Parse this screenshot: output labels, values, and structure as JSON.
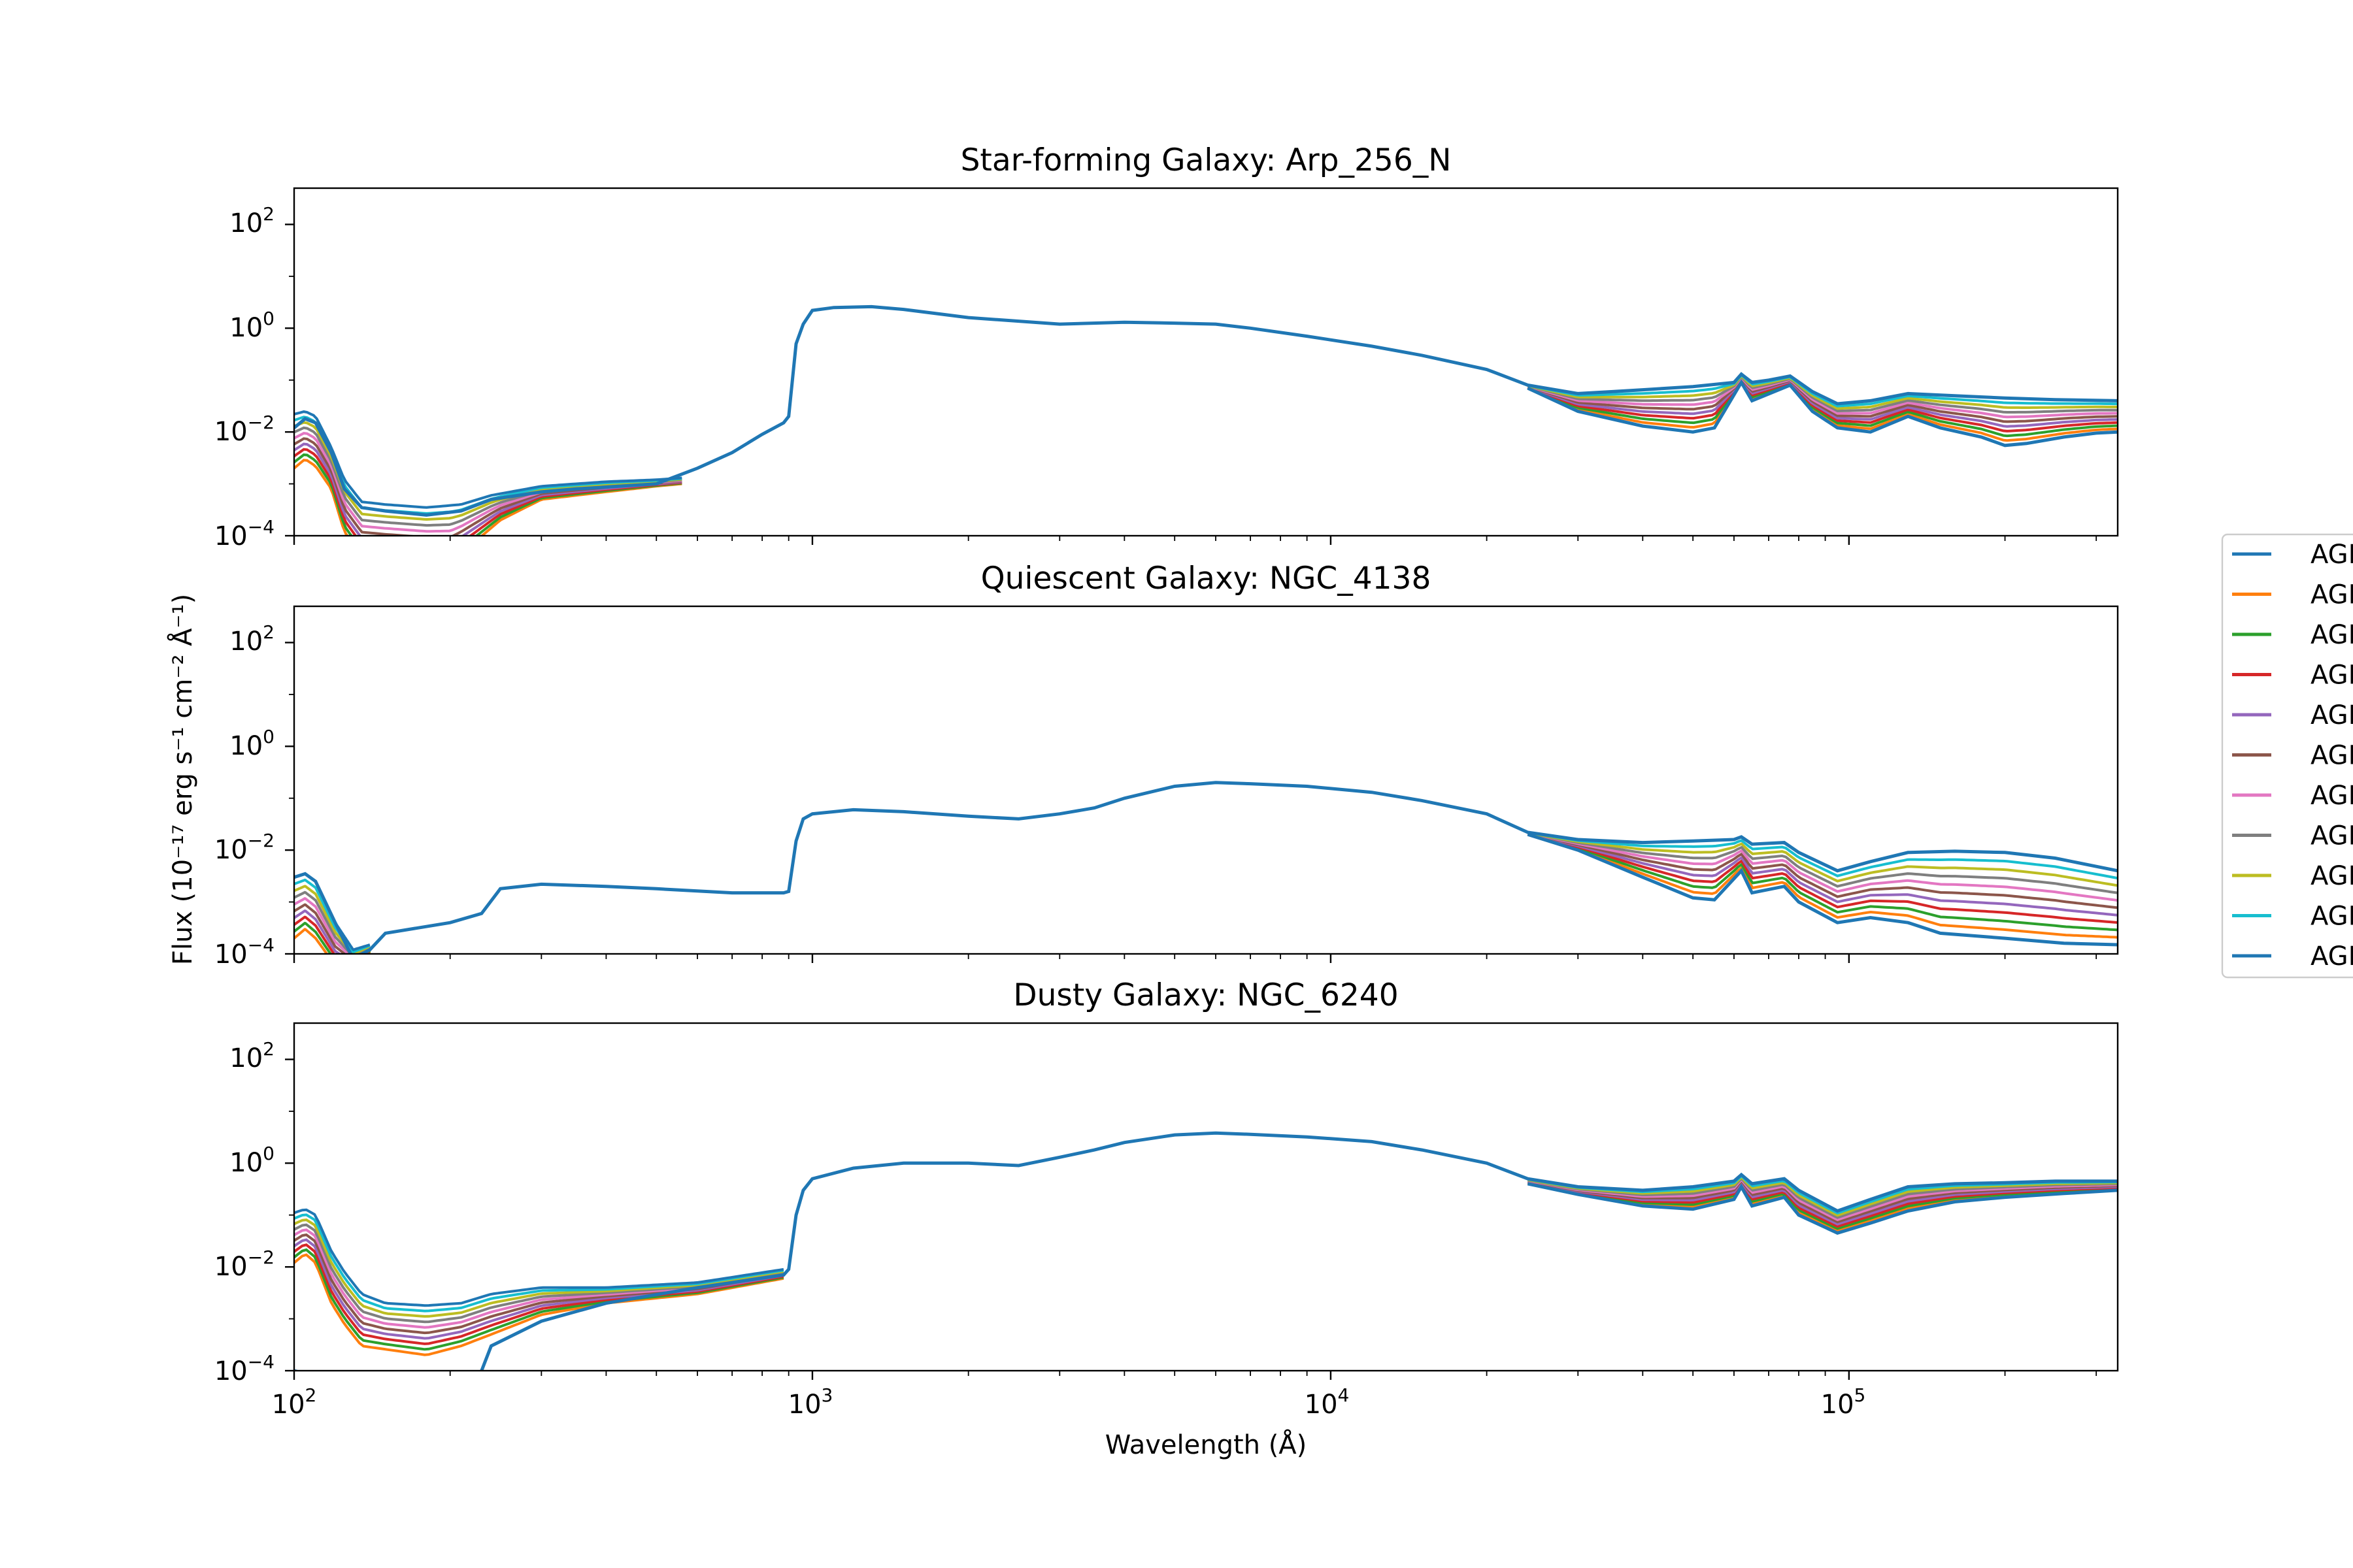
{
  "chart_data": [
    {
      "type": "line",
      "title": "Star-forming Galaxy: Arp_256_N",
      "xscale": "log",
      "yscale": "log",
      "xlim": [
        100,
        330000
      ],
      "ylim": [
        0.0001,
        500
      ],
      "xticks": [
        100,
        1000,
        10000,
        100000
      ],
      "yticks": [
        0.0001,
        0.01,
        1,
        100
      ],
      "base": [
        [
          100,
          0.012
        ],
        [
          105,
          0.018
        ],
        [
          110,
          0.015
        ],
        [
          118,
          0.004
        ],
        [
          125,
          0.0008
        ],
        [
          135,
          0.00035
        ],
        [
          150,
          0.0003
        ],
        [
          180,
          0.00025
        ],
        [
          210,
          0.0003
        ],
        [
          240,
          0.0005
        ],
        [
          300,
          0.0007
        ],
        [
          350,
          0.0008
        ],
        [
          500,
          0.001
        ],
        [
          600,
          0.002
        ],
        [
          700,
          0.004
        ],
        [
          800,
          0.009
        ],
        [
          880,
          0.015
        ],
        [
          900,
          0.02
        ],
        [
          930,
          0.5
        ],
        [
          960,
          1.2
        ],
        [
          1000,
          2.2
        ],
        [
          1100,
          2.5
        ],
        [
          1300,
          2.6
        ],
        [
          1500,
          2.3
        ],
        [
          2000,
          1.6
        ],
        [
          3000,
          1.2
        ],
        [
          4000,
          1.3
        ],
        [
          5000,
          1.25
        ],
        [
          6000,
          1.2
        ],
        [
          7000,
          1.0
        ],
        [
          9000,
          0.7
        ],
        [
          12000,
          0.45
        ],
        [
          15000,
          0.3
        ],
        [
          20000,
          0.16
        ],
        [
          24000,
          0.08
        ],
        [
          30000,
          0.055
        ],
        [
          35000,
          0.06
        ],
        [
          40000,
          0.065
        ],
        [
          50000,
          0.075
        ],
        [
          60000,
          0.09
        ],
        [
          62000,
          0.13
        ],
        [
          65000,
          0.09
        ],
        [
          70000,
          0.1
        ],
        [
          77000,
          0.12
        ],
        [
          85000,
          0.06
        ],
        [
          95000,
          0.035
        ],
        [
          110000,
          0.04
        ],
        [
          130000,
          0.055
        ],
        [
          160000,
          0.05
        ],
        [
          200000,
          0.045
        ],
        [
          250000,
          0.042
        ],
        [
          330000,
          0.04
        ]
      ],
      "low": [
        [
          24000,
          0.07
        ],
        [
          30000,
          0.025
        ],
        [
          40000,
          0.013
        ],
        [
          50000,
          0.01
        ],
        [
          55000,
          0.012
        ],
        [
          62000,
          0.09
        ],
        [
          65000,
          0.04
        ],
        [
          77000,
          0.08
        ],
        [
          85000,
          0.025
        ],
        [
          95000,
          0.012
        ],
        [
          110000,
          0.01
        ],
        [
          130000,
          0.02
        ],
        [
          150000,
          0.012
        ],
        [
          180000,
          0.008
        ],
        [
          200000,
          0.0055
        ],
        [
          220000,
          0.006
        ],
        [
          260000,
          0.008
        ],
        [
          300000,
          0.0095
        ],
        [
          330000,
          0.01
        ]
      ],
      "uv_top": [
        [
          100,
          0.022
        ],
        [
          105,
          0.025
        ],
        [
          110,
          0.02
        ],
        [
          118,
          0.005
        ],
        [
          125,
          0.0012
        ],
        [
          135,
          0.00045
        ],
        [
          150,
          0.0004
        ],
        [
          180,
          0.00035
        ],
        [
          210,
          0.0004
        ],
        [
          240,
          0.0006
        ],
        [
          300,
          0.0009
        ],
        [
          400,
          0.0011
        ],
        [
          500,
          0.0012
        ],
        [
          560,
          0.0013
        ]
      ],
      "uv_bottom": [
        [
          100,
          0.002
        ],
        [
          105,
          0.003
        ],
        [
          110,
          0.0022
        ],
        [
          118,
          0.0008
        ],
        [
          125,
          0.00012
        ],
        [
          135,
          4e-05
        ],
        [
          200,
          3e-05
        ],
        [
          250,
          0.0002
        ],
        [
          300,
          0.0005
        ],
        [
          400,
          0.0007
        ],
        [
          500,
          0.0009
        ],
        [
          560,
          0.001
        ]
      ],
      "ir_join": 24000
    },
    {
      "type": "line",
      "title": "Quiescent Galaxy: NGC_4138",
      "xscale": "log",
      "yscale": "log",
      "xlim": [
        100,
        330000
      ],
      "ylim": [
        0.0001,
        500
      ],
      "xticks": [
        100,
        1000,
        10000,
        100000
      ],
      "yticks": [
        0.0001,
        0.01,
        1,
        100
      ],
      "base": [
        [
          100,
          0.003
        ],
        [
          105,
          0.0035
        ],
        [
          110,
          0.0025
        ],
        [
          120,
          0.0004
        ],
        [
          130,
          8e-05
        ],
        [
          140,
          0.00012
        ],
        [
          150,
          0.00025
        ],
        [
          200,
          0.0004
        ],
        [
          230,
          0.0006
        ],
        [
          250,
          0.0018
        ],
        [
          300,
          0.0022
        ],
        [
          400,
          0.002
        ],
        [
          500,
          0.0018
        ],
        [
          700,
          0.0015
        ],
        [
          880,
          0.0015
        ],
        [
          900,
          0.0016
        ],
        [
          930,
          0.015
        ],
        [
          960,
          0.04
        ],
        [
          1000,
          0.05
        ],
        [
          1200,
          0.06
        ],
        [
          1500,
          0.055
        ],
        [
          2000,
          0.045
        ],
        [
          2500,
          0.04
        ],
        [
          3000,
          0.05
        ],
        [
          3500,
          0.065
        ],
        [
          4000,
          0.1
        ],
        [
          5000,
          0.17
        ],
        [
          6000,
          0.2
        ],
        [
          7000,
          0.19
        ],
        [
          9000,
          0.17
        ],
        [
          12000,
          0.13
        ],
        [
          15000,
          0.09
        ],
        [
          20000,
          0.05
        ],
        [
          24000,
          0.022
        ],
        [
          30000,
          0.016
        ],
        [
          40000,
          0.014
        ],
        [
          50000,
          0.015
        ],
        [
          60000,
          0.016
        ],
        [
          62000,
          0.018
        ],
        [
          65000,
          0.013
        ],
        [
          75000,
          0.014
        ],
        [
          80000,
          0.009
        ],
        [
          95000,
          0.004
        ],
        [
          110000,
          0.006
        ],
        [
          130000,
          0.009
        ],
        [
          160000,
          0.0095
        ],
        [
          200000,
          0.009
        ],
        [
          250000,
          0.007
        ],
        [
          330000,
          0.004
        ]
      ],
      "low": [
        [
          24000,
          0.02
        ],
        [
          30000,
          0.01
        ],
        [
          40000,
          0.003
        ],
        [
          50000,
          0.0012
        ],
        [
          55000,
          0.0011
        ],
        [
          62000,
          0.004
        ],
        [
          65000,
          0.0015
        ],
        [
          75000,
          0.002
        ],
        [
          80000,
          0.001
        ],
        [
          95000,
          0.0004
        ],
        [
          110000,
          0.0005
        ],
        [
          130000,
          0.0004
        ],
        [
          150000,
          0.00025
        ],
        [
          200000,
          0.0002
        ],
        [
          260000,
          0.00016
        ],
        [
          330000,
          0.00015
        ]
      ],
      "uv_top": [
        [
          100,
          0.003
        ],
        [
          105,
          0.0035
        ],
        [
          110,
          0.0025
        ],
        [
          120,
          0.0004
        ],
        [
          130,
          0.00012
        ],
        [
          140,
          0.00015
        ]
      ],
      "uv_bottom": [
        [
          100,
          0.0002
        ],
        [
          105,
          0.0003
        ],
        [
          110,
          0.0002
        ],
        [
          120,
          6e-05
        ],
        [
          130,
          5e-05
        ],
        [
          140,
          0.00011
        ]
      ],
      "ir_join": 24000
    },
    {
      "type": "line",
      "title": "Dusty Galaxy: NGC_6240",
      "xscale": "log",
      "yscale": "log",
      "xlim": [
        100,
        330000
      ],
      "ylim": [
        0.0001,
        500
      ],
      "xticks": [
        100,
        1000,
        10000,
        100000
      ],
      "yticks": [
        0.0001,
        0.01,
        1,
        100
      ],
      "xlabel": "Wavelength (Å)",
      "base": [
        [
          100,
          0.0001
        ],
        [
          130,
          5e-05
        ],
        [
          200,
          3e-05
        ],
        [
          230,
          0.0001
        ],
        [
          240,
          0.0003
        ],
        [
          300,
          0.0009
        ],
        [
          400,
          0.002
        ],
        [
          600,
          0.004
        ],
        [
          880,
          0.007
        ],
        [
          900,
          0.009
        ],
        [
          930,
          0.1
        ],
        [
          960,
          0.3
        ],
        [
          1000,
          0.5
        ],
        [
          1200,
          0.8
        ],
        [
          1500,
          1.0
        ],
        [
          2000,
          1.0
        ],
        [
          2500,
          0.9
        ],
        [
          3000,
          1.3
        ],
        [
          3500,
          1.8
        ],
        [
          4000,
          2.5
        ],
        [
          5000,
          3.5
        ],
        [
          6000,
          3.8
        ],
        [
          7000,
          3.6
        ],
        [
          9000,
          3.2
        ],
        [
          12000,
          2.6
        ],
        [
          15000,
          1.8
        ],
        [
          20000,
          1.0
        ],
        [
          24000,
          0.5
        ],
        [
          30000,
          0.35
        ],
        [
          40000,
          0.3
        ],
        [
          50000,
          0.35
        ],
        [
          60000,
          0.45
        ],
        [
          62000,
          0.6
        ],
        [
          65000,
          0.4
        ],
        [
          75000,
          0.5
        ],
        [
          80000,
          0.3
        ],
        [
          95000,
          0.12
        ],
        [
          110000,
          0.2
        ],
        [
          130000,
          0.35
        ],
        [
          160000,
          0.4
        ],
        [
          200000,
          0.42
        ],
        [
          250000,
          0.45
        ],
        [
          330000,
          0.45
        ]
      ],
      "low": [
        [
          24000,
          0.4
        ],
        [
          30000,
          0.25
        ],
        [
          40000,
          0.15
        ],
        [
          50000,
          0.13
        ],
        [
          60000,
          0.2
        ],
        [
          62000,
          0.35
        ],
        [
          65000,
          0.15
        ],
        [
          75000,
          0.22
        ],
        [
          80000,
          0.1
        ],
        [
          95000,
          0.045
        ],
        [
          110000,
          0.07
        ],
        [
          130000,
          0.12
        ],
        [
          160000,
          0.18
        ],
        [
          200000,
          0.22
        ],
        [
          260000,
          0.26
        ],
        [
          330000,
          0.3
        ]
      ],
      "uv_top": [
        [
          100,
          0.11
        ],
        [
          105,
          0.13
        ],
        [
          110,
          0.1
        ],
        [
          118,
          0.02
        ],
        [
          125,
          0.008
        ],
        [
          135,
          0.003
        ],
        [
          150,
          0.002
        ],
        [
          180,
          0.0018
        ],
        [
          210,
          0.002
        ],
        [
          240,
          0.003
        ],
        [
          300,
          0.004
        ],
        [
          400,
          0.004
        ],
        [
          600,
          0.005
        ],
        [
          880,
          0.009
        ]
      ],
      "uv_bottom": [
        [
          100,
          0.012
        ],
        [
          105,
          0.018
        ],
        [
          110,
          0.012
        ],
        [
          118,
          0.002
        ],
        [
          125,
          0.0008
        ],
        [
          135,
          0.0003
        ],
        [
          180,
          0.0002
        ],
        [
          210,
          0.0003
        ],
        [
          240,
          0.0005
        ],
        [
          300,
          0.0012
        ],
        [
          400,
          0.002
        ],
        [
          600,
          0.003
        ],
        [
          880,
          0.006
        ]
      ],
      "ir_join": 24000
    }
  ],
  "figure": {
    "ylabel": "Flux (10⁻¹⁷ erg s⁻¹ cm⁻² Å⁻¹)",
    "legend": {
      "placement": "right",
      "entries": [
        {
          "label": "AGN",
          "color": "#1f77b4"
        },
        {
          "label": "AGN",
          "color": "#ff7f0e"
        },
        {
          "label": "AGN",
          "color": "#2ca02c"
        },
        {
          "label": "AGN",
          "color": "#d62728"
        },
        {
          "label": "AGN",
          "color": "#9467bd"
        },
        {
          "label": "AGN",
          "color": "#8c564b"
        },
        {
          "label": "AGN",
          "color": "#e377c2"
        },
        {
          "label": "AGN",
          "color": "#7f7f7f"
        },
        {
          "label": "AGN",
          "color": "#bcbd22"
        },
        {
          "label": "AGN",
          "color": "#17becf"
        },
        {
          "label": "AGN",
          "color": "#1f77b4"
        }
      ]
    }
  },
  "tick_labels": {
    "y": [
      {
        "base": "10",
        "exp": "−4"
      },
      {
        "base": "10",
        "exp": "−2"
      },
      {
        "base": "10",
        "exp": "0"
      },
      {
        "base": "10",
        "exp": "2"
      }
    ],
    "x": [
      {
        "base": "10",
        "exp": "2"
      },
      {
        "base": "10",
        "exp": "3"
      },
      {
        "base": "10",
        "exp": "4"
      },
      {
        "base": "10",
        "exp": "5"
      }
    ]
  },
  "series_colors": [
    "#1f77b4",
    "#ff7f0e",
    "#2ca02c",
    "#d62728",
    "#9467bd",
    "#8c564b",
    "#e377c2",
    "#7f7f7f",
    "#bcbd22",
    "#17becf",
    "#1f77b4"
  ]
}
